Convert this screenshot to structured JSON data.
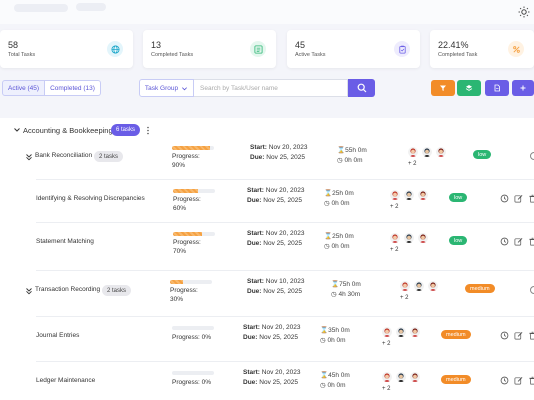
{
  "stats": [
    {
      "value": "58",
      "label": "Total Tasks",
      "icon": "globe-icon",
      "color": "#12a3c7",
      "bg": "#e3f5fb"
    },
    {
      "value": "13",
      "label": "Completed Tasks",
      "icon": "list-check-icon",
      "color": "#2bb673",
      "bg": "#e4f7ee"
    },
    {
      "value": "45",
      "label": "Active Tasks",
      "icon": "clipboard-icon",
      "color": "#6a5de6",
      "bg": "#eeecfd"
    },
    {
      "value": "22.41%",
      "label": "Completed Task",
      "icon": "percent-icon",
      "color": "#f5a142",
      "bg": "#fff2e2"
    }
  ],
  "tabs": {
    "active": "Active (45)",
    "completed": "Completed (13)"
  },
  "filter": {
    "group_label": "Task Group",
    "search_placeholder": "Search by Task/User name"
  },
  "action_buttons": [
    {
      "name": "filter-icon",
      "color": "#f28c28"
    },
    {
      "name": "layers-icon",
      "color": "#2bb673"
    },
    {
      "name": "document-icon",
      "color": "#6a5de6"
    },
    {
      "name": "plus-icon",
      "color": "#6a5de6"
    }
  ],
  "group": {
    "title": "Accounting & Bookkeeping",
    "count": "6 tasks"
  },
  "tasks": [
    {
      "name": "Bank Reconciliation",
      "badge": "2 tasks",
      "progress_label": "Progress:",
      "progress_value": "90%",
      "progress": 0.9,
      "start_label": "Start:",
      "start": "Nov 20, 2023",
      "due_label": "Due:",
      "due": "Nov 25, 2025",
      "estimated": "55h 0m",
      "spent": "0h 0m",
      "plus": "+ 2",
      "priority": "low",
      "priority_color": "#2bb673"
    },
    {
      "name": "Identifying & Resolving Discrepancies",
      "badge": "",
      "progress_label": "Progress:",
      "progress_value": "60%",
      "progress": 0.6,
      "start_label": "Start:",
      "start": "Nov 20, 2023",
      "due_label": "Due:",
      "due": "Nov 25, 2025",
      "estimated": "25h 0m",
      "spent": "0h 0m",
      "plus": "+ 2",
      "priority": "low",
      "priority_color": "#2bb673"
    },
    {
      "name": "Statement Matching",
      "badge": "",
      "progress_label": "Progress:",
      "progress_value": "70%",
      "progress": 0.7,
      "start_label": "Start:",
      "start": "Nov 20, 2023",
      "due_label": "Due:",
      "due": "Nov 25, 2025",
      "estimated": "25h 0m",
      "spent": "0h 0m",
      "plus": "+ 2",
      "priority": "low",
      "priority_color": "#2bb673"
    },
    {
      "name": "Transaction Recording",
      "badge": "2 tasks",
      "progress_label": "Progress:",
      "progress_value": "30%",
      "progress": 0.3,
      "start_label": "Start:",
      "start": "Nov 10, 2023",
      "due_label": "Due:",
      "due": "Nov 25, 2025",
      "estimated": "75h 0m",
      "spent": "4h 30m",
      "plus": "+ 2",
      "priority": "medium",
      "priority_color": "#f28c28"
    },
    {
      "name": "Journal Entries",
      "badge": "",
      "progress_label": "Progress:",
      "progress_value": "0%",
      "progress": 0,
      "start_label": "Start:",
      "start": "Nov 20, 2023",
      "due_label": "Due:",
      "due": "Nov 25, 2025",
      "estimated": "35h 0m",
      "spent": "0h 0m",
      "plus": "+ 2",
      "priority": "medium",
      "priority_color": "#f28c28"
    },
    {
      "name": "Ledger Maintenance",
      "badge": "",
      "progress_label": "Progress:",
      "progress_value": "0%",
      "progress": 0,
      "start_label": "Start:",
      "start": "Nov 20, 2023",
      "due_label": "Due:",
      "due": "Nov 25, 2025",
      "estimated": "45h 0m",
      "spent": "0h 0m",
      "plus": "+ 2",
      "priority": "medium",
      "priority_color": "#f28c28"
    }
  ]
}
